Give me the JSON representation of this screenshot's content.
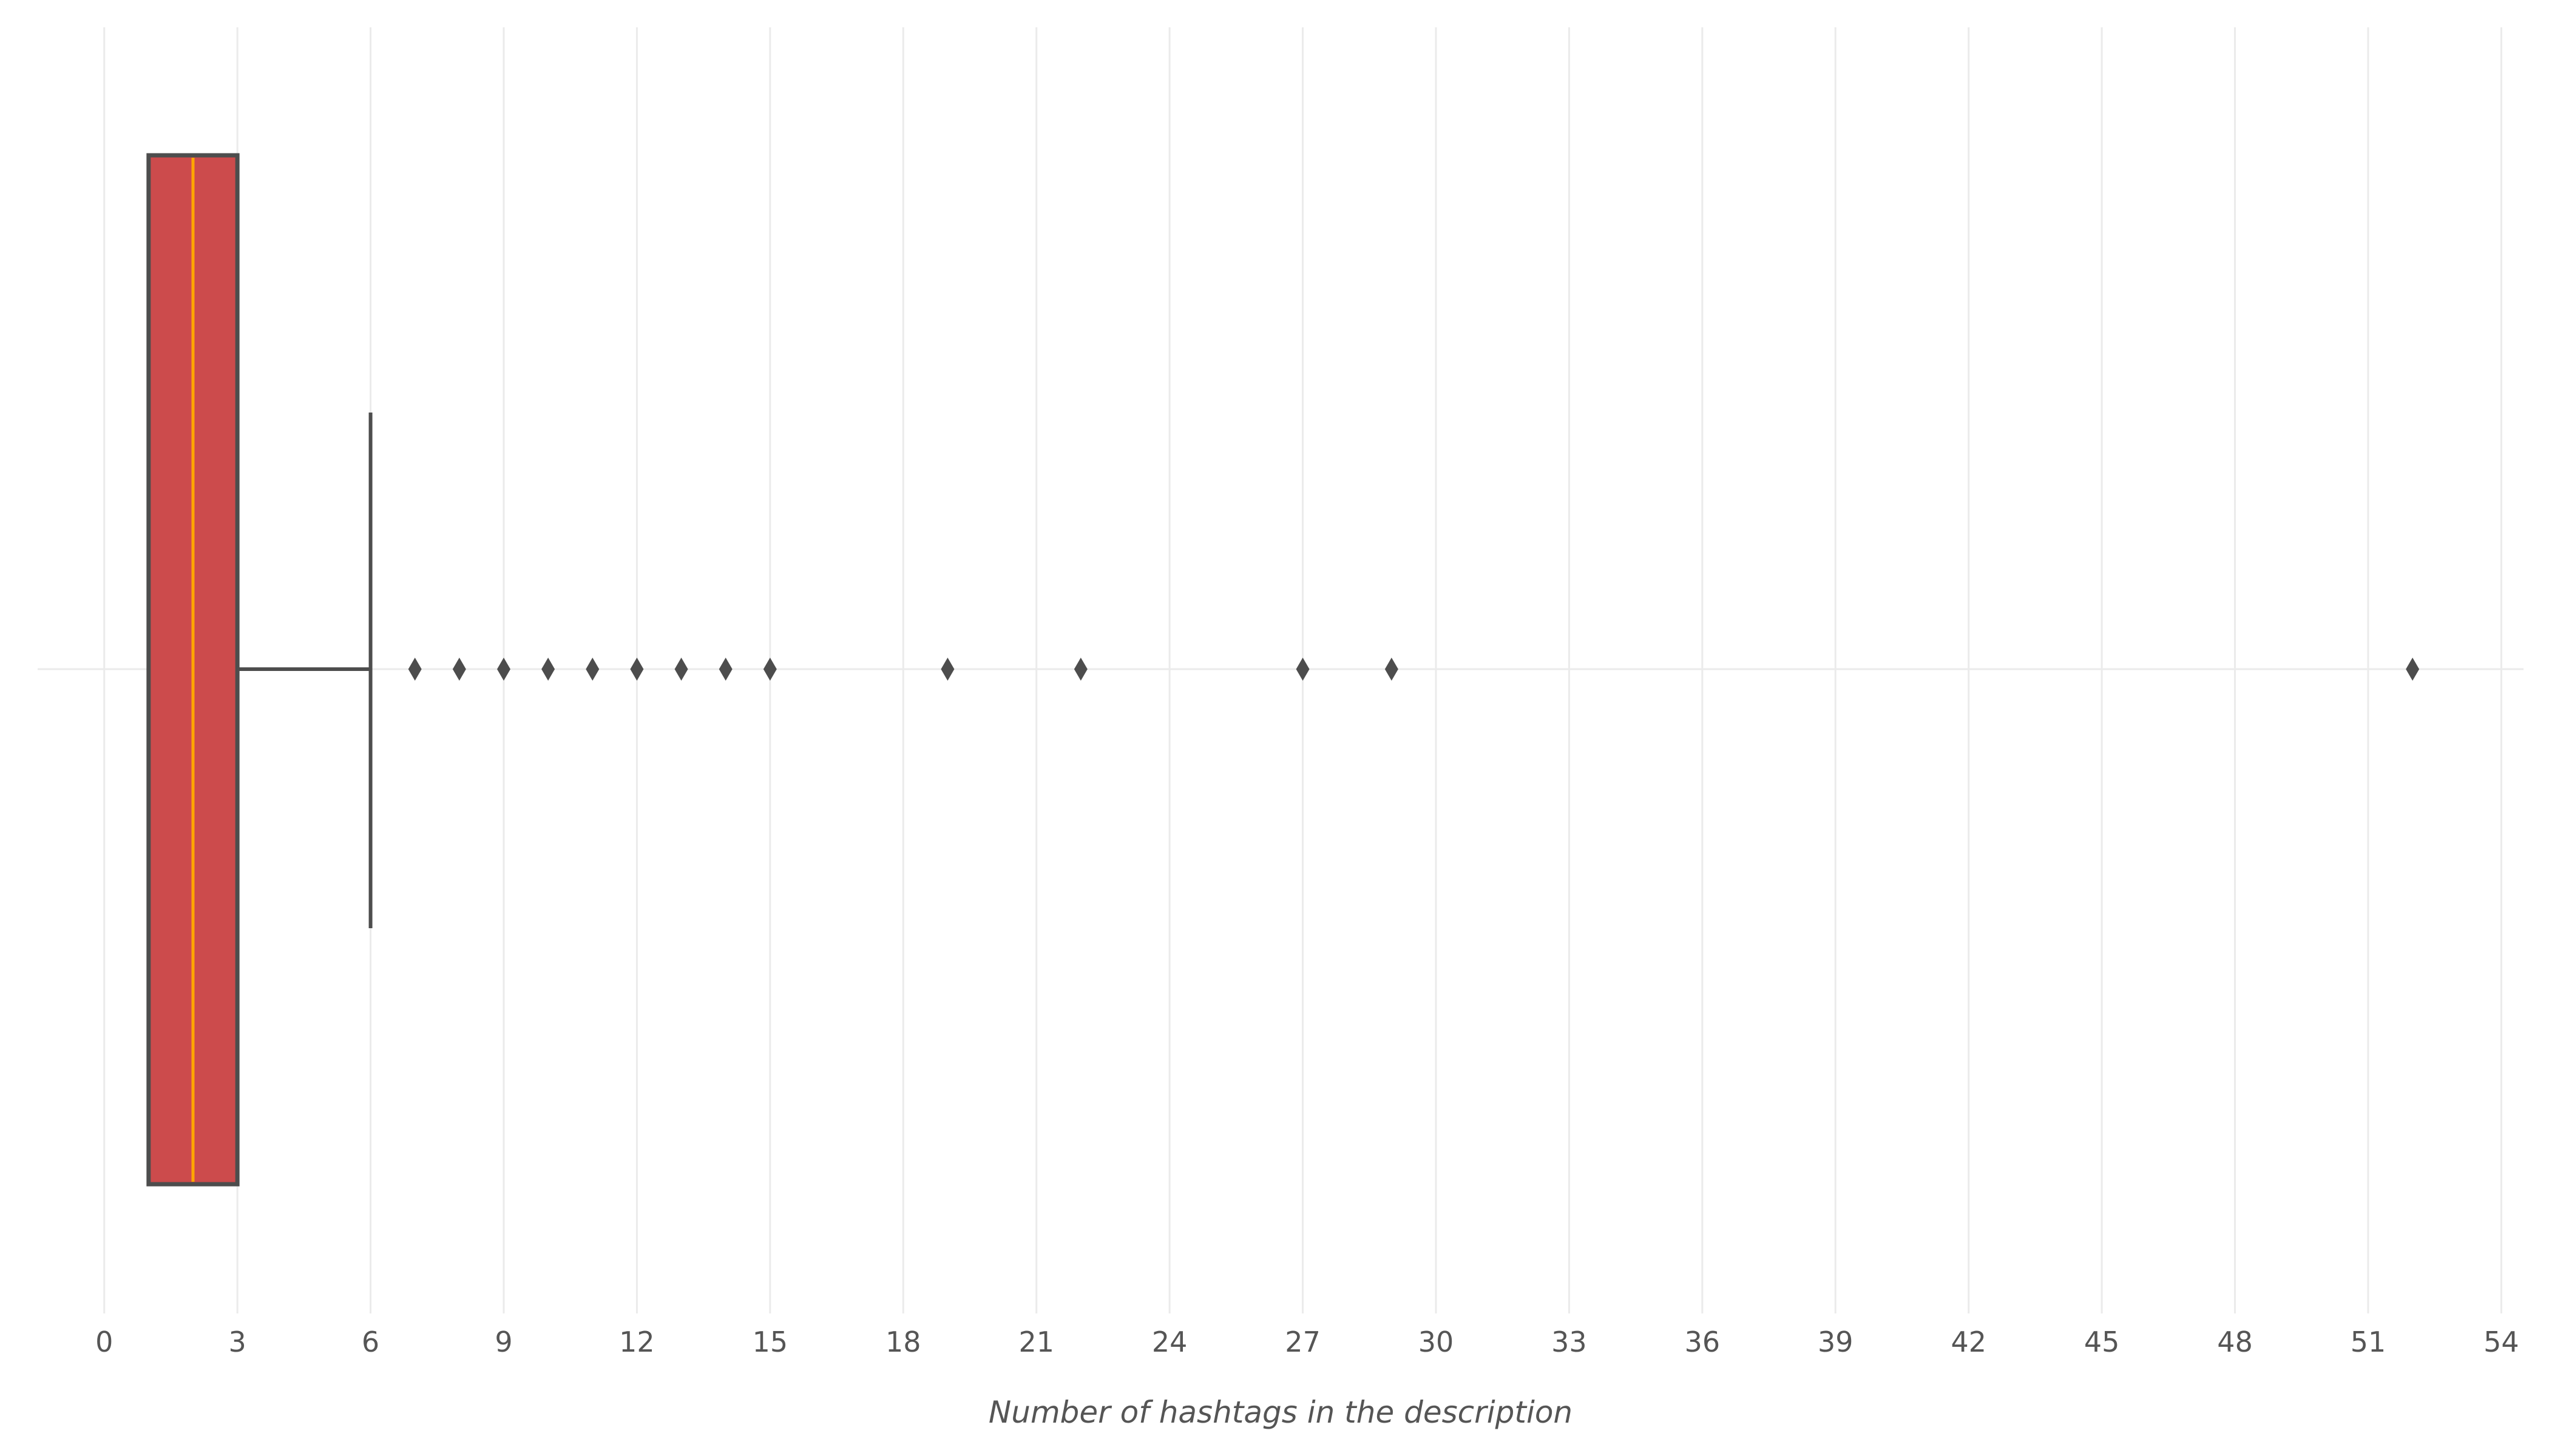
{
  "chart_data": {
    "type": "boxplot",
    "orientation": "horizontal",
    "title": "",
    "xlabel": "Number of hashtags in the description",
    "ylabel": "",
    "xlim": [
      -1.5,
      54.5
    ],
    "x_ticks": [
      0,
      3,
      6,
      9,
      12,
      15,
      18,
      21,
      24,
      27,
      30,
      33,
      36,
      39,
      42,
      45,
      48,
      51,
      54
    ],
    "grid": true,
    "box": {
      "q1": 1,
      "median": 2,
      "q3": 3,
      "whisker_low": 1,
      "whisker_high": 6,
      "outliers": [
        7,
        8,
        9,
        10,
        11,
        12,
        13,
        14,
        15,
        19,
        22,
        27,
        29,
        52
      ]
    },
    "colors": {
      "box_fill": "#cc4b4c",
      "box_edge": "#4d4d4d",
      "median": "#ffa500",
      "grid": "#ebebeb",
      "text": "#555555",
      "flier": "#4d4d4d"
    }
  }
}
